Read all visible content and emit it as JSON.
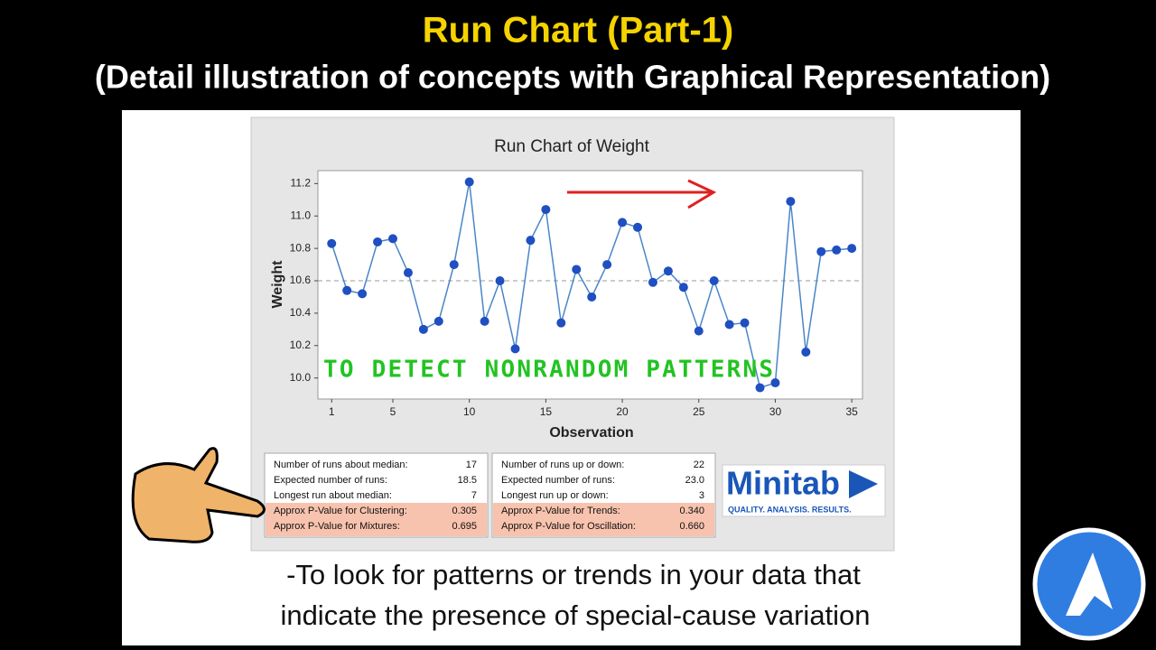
{
  "header": {
    "title": "Run Chart (Part-1)",
    "subtitle": "(Detail illustration of concepts with Graphical Representation)"
  },
  "chart_data": {
    "type": "line",
    "title": "Run Chart of Weight",
    "x_label": "Observation",
    "y_label": "Weight",
    "x": [
      1,
      2,
      3,
      4,
      5,
      6,
      7,
      8,
      9,
      10,
      11,
      12,
      13,
      14,
      15,
      16,
      17,
      18,
      19,
      20,
      21,
      22,
      23,
      24,
      25,
      26,
      27,
      28,
      29,
      30,
      31,
      32,
      33,
      34,
      35
    ],
    "values": [
      10.83,
      10.54,
      10.52,
      10.84,
      10.86,
      10.65,
      10.3,
      10.35,
      10.7,
      11.21,
      10.35,
      10.6,
      10.18,
      10.85,
      11.04,
      10.34,
      10.67,
      10.5,
      10.7,
      10.96,
      10.93,
      10.59,
      10.66,
      10.56,
      10.29,
      10.6,
      10.33,
      10.34,
      9.94,
      9.97,
      11.09,
      10.16,
      10.78,
      10.79,
      10.8
    ],
    "color": "#1f4fc0",
    "median": 10.6,
    "xlim": [
      0.1,
      35.7
    ],
    "ylim": [
      9.87,
      11.28
    ],
    "xticks": [
      1,
      5,
      10,
      15,
      20,
      25,
      30,
      35
    ],
    "yticks": [
      {
        "value": 10,
        "label": "10.0"
      },
      10.2,
      10.4,
      10.6,
      10.8,
      {
        "value": 11,
        "label": "11.0"
      },
      11.2
    ],
    "annotation": "TO DETECT NONRANDOM PATTERNS"
  },
  "stats": {
    "left": [
      [
        "Number of runs about median:",
        "17"
      ],
      [
        "Expected number of runs:",
        "18.5"
      ],
      [
        "Longest run about median:",
        "7"
      ],
      [
        "Approx P-Value for Clustering:",
        "0.305"
      ],
      [
        "Approx P-Value for Mixtures:",
        "0.695"
      ]
    ],
    "right": [
      [
        "Number of runs up or down:",
        "22"
      ],
      [
        "Expected number of runs:",
        "23.0"
      ],
      [
        "Longest run up or down:",
        "3"
      ],
      [
        "Approx P-Value for Trends:",
        "0.340"
      ],
      [
        "Approx P-Value for Oscillation:",
        "0.660"
      ]
    ]
  },
  "logo": {
    "name": "Minitab",
    "tagline": "QUALITY. ANALYSIS. RESULTS."
  },
  "footer": {
    "lines": [
      "-To look for patterns or trends in your data that",
      "indicate the presence of special-cause variation"
    ]
  }
}
